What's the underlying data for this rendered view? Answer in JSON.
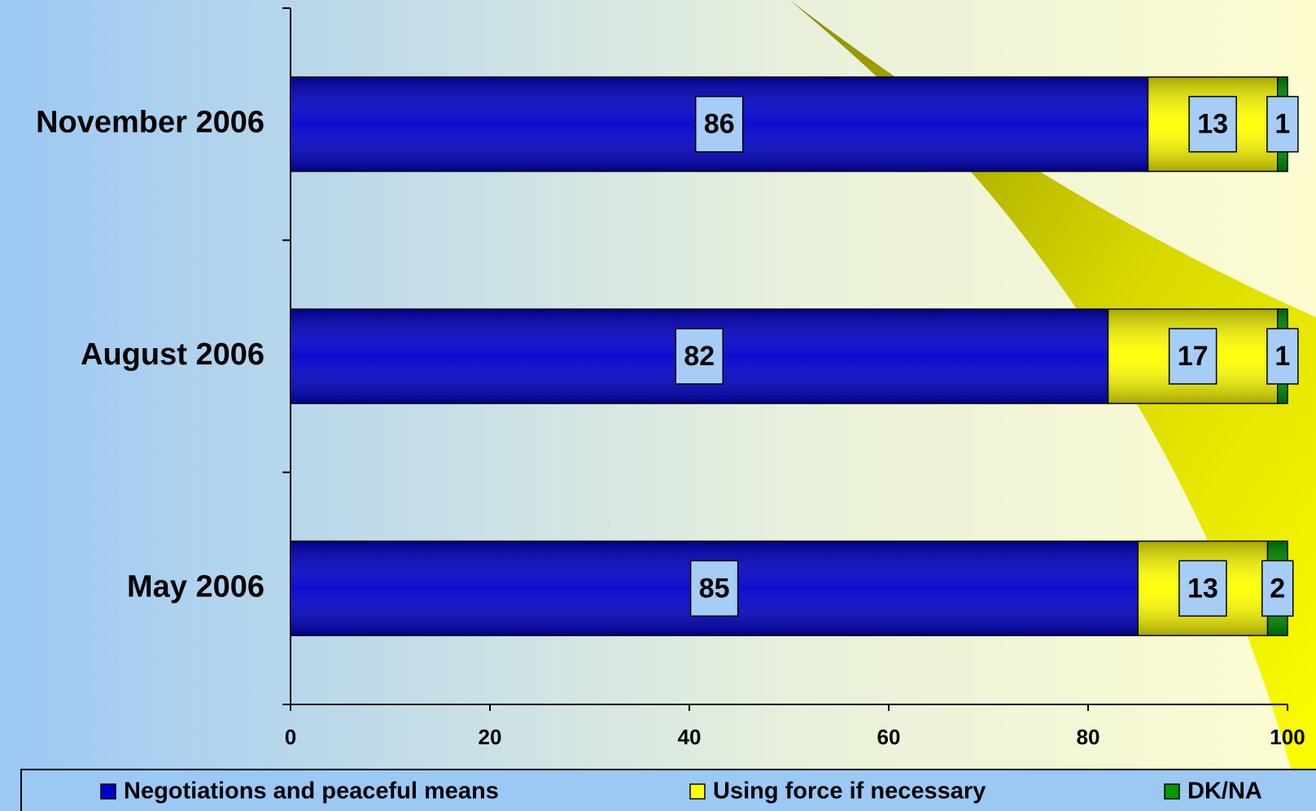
{
  "chart_data": {
    "type": "stacked-bar",
    "orientation": "horizontal",
    "categories": [
      "November 2006",
      "August 2006",
      "May 2006"
    ],
    "series": [
      {
        "name": "Negotiations and peaceful means",
        "color": "#0000cc",
        "values": [
          86,
          82,
          85
        ]
      },
      {
        "name": "Using force if necessary",
        "color": "#ffff00",
        "values": [
          13,
          17,
          13
        ]
      },
      {
        "name": "DK/NA",
        "color": "#009900",
        "values": [
          1,
          1,
          2
        ]
      }
    ],
    "xlim": [
      0,
      100
    ],
    "xticks": [
      0,
      20,
      40,
      60,
      80,
      100
    ],
    "legend": "bottom",
    "label_box_color": "#a6cdf5"
  }
}
